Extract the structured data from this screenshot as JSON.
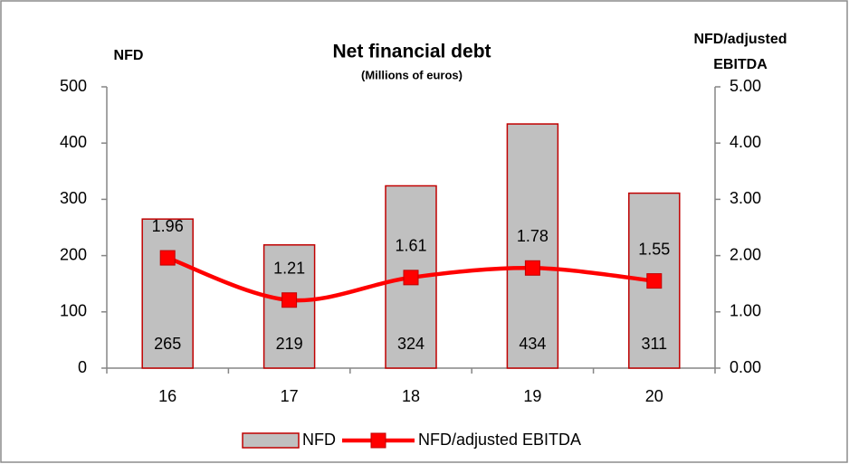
{
  "chart_data": {
    "type": "bar",
    "title": "Net financial debt",
    "subtitle": "(Millions of euros)",
    "ylabel": "NFD",
    "y2label": [
      "NFD/adjusted",
      "EBITDA"
    ],
    "categories": [
      "16",
      "17",
      "18",
      "19",
      "20"
    ],
    "series": [
      {
        "name": "NFD",
        "color": "#c0c0c0",
        "edge": "#c00000",
        "values": [
          265,
          219,
          324,
          434,
          311
        ]
      },
      {
        "name": "NFD/adjusted EBITDA",
        "type": "line",
        "axis": "y2",
        "color": "#ff0000",
        "values": [
          1.96,
          1.21,
          1.61,
          1.78,
          1.55
        ]
      }
    ],
    "ylim": [
      0,
      500
    ],
    "yticks": [
      0,
      100,
      200,
      300,
      400,
      500
    ],
    "y2lim": [
      0,
      5
    ],
    "y2ticks": [
      {
        "value": 0,
        "label": "0.00"
      },
      {
        "value": 1,
        "label": "1.00"
      },
      {
        "value": 2,
        "label": "2.00"
      },
      {
        "value": 3,
        "label": "3.00"
      },
      {
        "value": 4,
        "label": "4.00"
      },
      {
        "value": 5,
        "label": "5.00"
      }
    ],
    "legend": "bottom"
  }
}
